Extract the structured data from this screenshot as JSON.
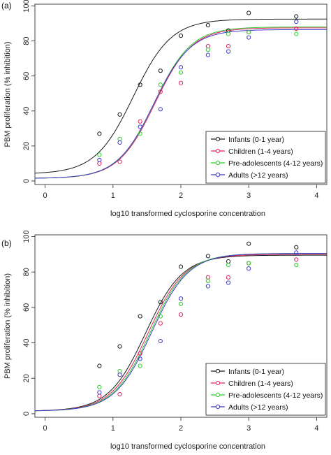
{
  "chart_data": [
    {
      "type": "scatter",
      "panel_label": "(a)",
      "xlabel": "log10 transformed cyclosporine concentration",
      "ylabel": "PBM proliferation (% inhibition)",
      "xlim": [
        -0.15,
        4.15
      ],
      "ylim": [
        -2,
        101
      ],
      "xticks": [
        "0",
        "1",
        "2",
        "3",
        "4"
      ],
      "yticks": [
        "0",
        "20",
        "40",
        "60",
        "80",
        "100"
      ],
      "grid": false,
      "legend_position": "bottom-right",
      "series": [
        {
          "name": "Infants (0-1 year)",
          "color": "#1a1a1a",
          "fit": {
            "top": 92.5,
            "bottom": 4.0,
            "ec50": 1.3,
            "hill": 1.55
          },
          "points": [
            [
              0.8,
              27
            ],
            [
              1.1,
              38
            ],
            [
              1.4,
              55
            ],
            [
              1.7,
              63
            ],
            [
              2.0,
              83
            ],
            [
              2.4,
              89
            ],
            [
              2.7,
              86
            ],
            [
              3.0,
              96
            ],
            [
              3.7,
              94
            ]
          ]
        },
        {
          "name": "Children (1-4 years)",
          "color": "#e0245e",
          "fit": {
            "top": 87.5,
            "bottom": 1.5,
            "ec50": 1.62,
            "hill": 1.6
          },
          "points": [
            [
              0.8,
              10
            ],
            [
              1.1,
              11
            ],
            [
              1.4,
              34
            ],
            [
              1.7,
              51
            ],
            [
              2.0,
              56
            ],
            [
              2.4,
              77
            ],
            [
              2.7,
              77
            ],
            [
              3.0,
              85
            ],
            [
              3.7,
              87
            ]
          ]
        },
        {
          "name": "Pre-adolescents (4-12 years)",
          "color": "#2ecc2e",
          "fit": {
            "top": 88.0,
            "bottom": 1.5,
            "ec50": 1.61,
            "hill": 1.6
          },
          "points": [
            [
              0.8,
              15
            ],
            [
              1.1,
              24
            ],
            [
              1.4,
              27
            ],
            [
              1.7,
              55
            ],
            [
              2.0,
              62
            ],
            [
              2.4,
              75
            ],
            [
              2.7,
              84
            ],
            [
              3.0,
              85
            ],
            [
              3.7,
              84
            ]
          ]
        },
        {
          "name": "Adults (>12 years)",
          "color": "#3b3bcc",
          "fit": {
            "top": 86.5,
            "bottom": 1.5,
            "ec50": 1.6,
            "hill": 1.6
          },
          "points": [
            [
              0.8,
              12
            ],
            [
              1.1,
              22
            ],
            [
              1.4,
              31
            ],
            [
              1.7,
              41
            ],
            [
              2.0,
              65
            ],
            [
              2.4,
              72
            ],
            [
              2.7,
              74
            ],
            [
              3.0,
              82
            ],
            [
              3.7,
              91
            ]
          ]
        }
      ]
    },
    {
      "type": "scatter",
      "panel_label": "(b)",
      "xlabel": "log10 transformed cyclosporine concentration",
      "ylabel": "PBM proliferation (% inhibition)",
      "xlim": [
        -0.15,
        4.15
      ],
      "ylim": [
        -2,
        101
      ],
      "xticks": [
        "0",
        "1",
        "2",
        "3",
        "4"
      ],
      "yticks": [
        "0",
        "20",
        "40",
        "60",
        "80",
        "100"
      ],
      "grid": false,
      "legend_position": "bottom-right",
      "series": [
        {
          "name": "Infants (0-1 year)",
          "color": "#1a1a1a",
          "fit": {
            "top": 89.5,
            "bottom": 1.5,
            "ec50": 1.48,
            "hill": 1.6
          },
          "points": [
            [
              0.8,
              27
            ],
            [
              1.1,
              38
            ],
            [
              1.4,
              55
            ],
            [
              1.7,
              63
            ],
            [
              2.0,
              83
            ],
            [
              2.4,
              89
            ],
            [
              2.7,
              86
            ],
            [
              3.0,
              96
            ],
            [
              3.7,
              94
            ]
          ]
        },
        {
          "name": "Children (1-4 years)",
          "color": "#e0245e",
          "fit": {
            "top": 90.0,
            "bottom": 1.5,
            "ec50": 1.52,
            "hill": 1.6
          },
          "points": [
            [
              0.8,
              10
            ],
            [
              1.1,
              11
            ],
            [
              1.4,
              34
            ],
            [
              1.7,
              51
            ],
            [
              2.0,
              56
            ],
            [
              2.4,
              77
            ],
            [
              2.7,
              77
            ],
            [
              3.0,
              85
            ],
            [
              3.7,
              87
            ]
          ]
        },
        {
          "name": "Pre-adolescents (4-12 years)",
          "color": "#2ecc2e",
          "fit": {
            "top": 90.5,
            "bottom": 1.5,
            "ec50": 1.55,
            "hill": 1.6
          },
          "points": [
            [
              0.8,
              15
            ],
            [
              1.1,
              24
            ],
            [
              1.4,
              27
            ],
            [
              1.7,
              55
            ],
            [
              2.0,
              62
            ],
            [
              2.4,
              75
            ],
            [
              2.7,
              84
            ],
            [
              3.0,
              85
            ],
            [
              3.7,
              84
            ]
          ]
        },
        {
          "name": "Adults (>12 years)",
          "color": "#3b3bcc",
          "fit": {
            "top": 90.5,
            "bottom": 1.5,
            "ec50": 1.57,
            "hill": 1.6
          },
          "points": [
            [
              0.8,
              12
            ],
            [
              1.1,
              22
            ],
            [
              1.4,
              31
            ],
            [
              1.7,
              41
            ],
            [
              2.0,
              65
            ],
            [
              2.4,
              72
            ],
            [
              2.7,
              74
            ],
            [
              3.0,
              82
            ],
            [
              3.7,
              91
            ]
          ]
        }
      ]
    }
  ]
}
